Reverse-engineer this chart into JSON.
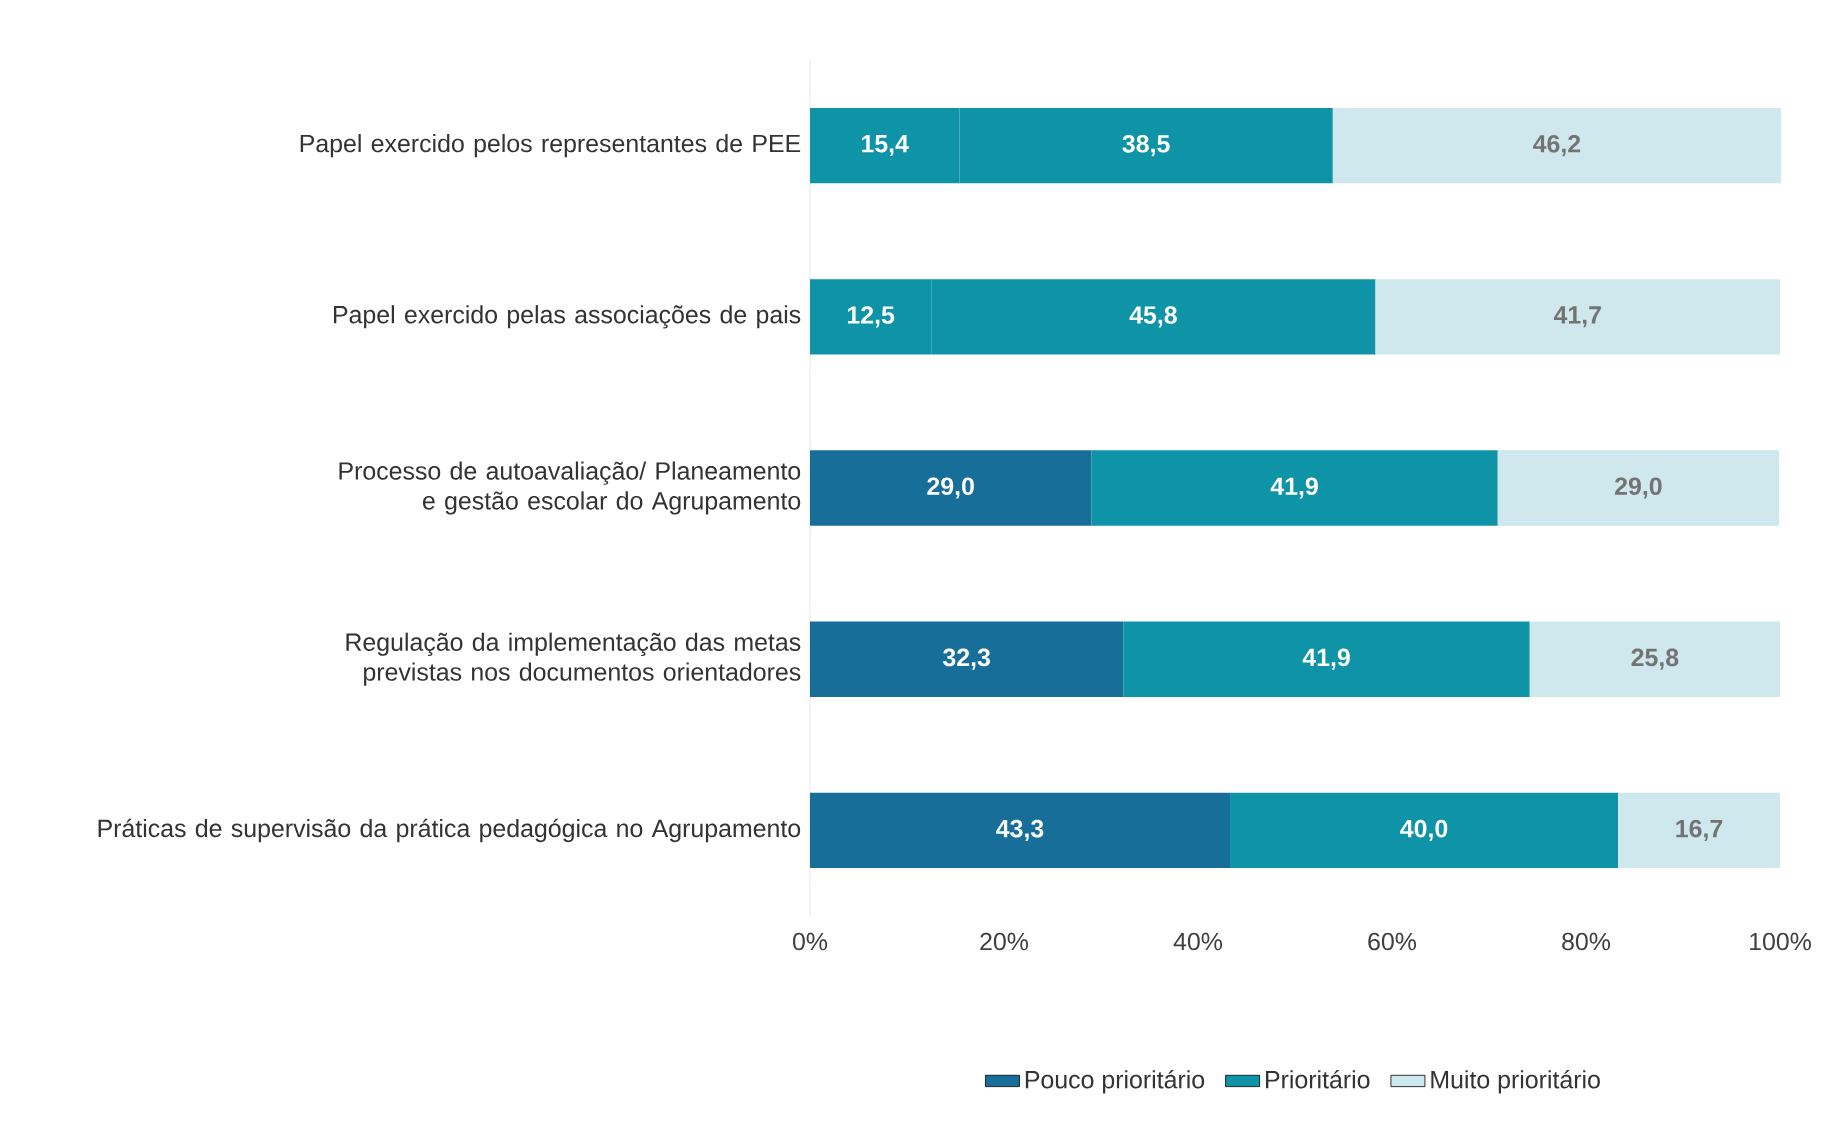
{
  "chart_data": {
    "type": "bar",
    "orientation": "horizontal",
    "stacked": true,
    "legend": "bottom",
    "grid": false,
    "categories": [
      "Papel exercido pelos representantes de PEE",
      "Papel exercido pelas associações de pais",
      "Processo de autoavaliação/ Planeamento e gestão escolar do Agrupamento",
      "Regulação da implementação das metas previstas nos documentos orientadores",
      "Práticas de supervisão da prática pedagógica no Agrupamento"
    ],
    "series": [
      {
        "name": "Pouco prioritário",
        "color": "#176e99",
        "colors": [
          "#0e94a6",
          "#0e94a6",
          "#176e99",
          "#176e99",
          "#176e99"
        ],
        "values": [
          15.4,
          12.5,
          29.0,
          32.3,
          43.3
        ],
        "value_labels": [
          "15,4",
          "12,5",
          "29,0",
          "32,3",
          "43,3"
        ]
      },
      {
        "name": "Prioritário",
        "color": "#0e94a6",
        "values": [
          38.5,
          45.8,
          41.9,
          41.9,
          40.0
        ],
        "value_labels": [
          "38,5",
          "45,8",
          "41,9",
          "41,9",
          "40,0"
        ]
      },
      {
        "name": "Muito prioritário",
        "color": "#cfe8ee",
        "values": [
          46.2,
          41.7,
          29.0,
          25.8,
          16.7
        ],
        "value_labels": [
          "46,2",
          "41,7",
          "29,0",
          "25,8",
          "16,7"
        ]
      }
    ],
    "xlim": [
      0,
      100
    ],
    "xticks": [
      {
        "value": 0,
        "label": "0%"
      },
      {
        "value": 20,
        "label": "20%"
      },
      {
        "value": 40,
        "label": "40%"
      },
      {
        "value": 60,
        "label": "60%"
      },
      {
        "value": 80,
        "label": "80%"
      },
      {
        "value": 100,
        "label": "100%"
      }
    ]
  }
}
